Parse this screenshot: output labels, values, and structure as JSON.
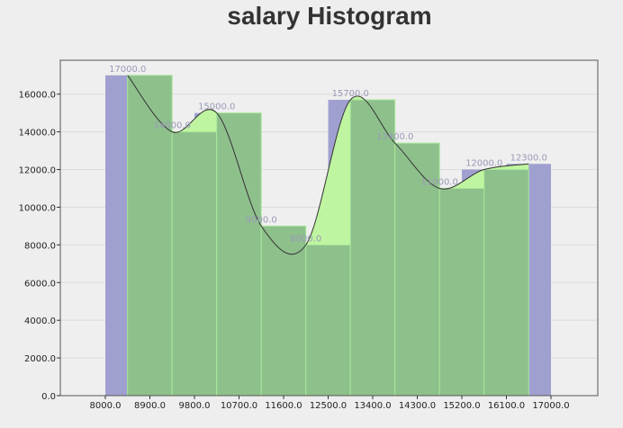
{
  "chart_data": {
    "type": "bar",
    "title": "salary Histogram",
    "xlabel": "",
    "ylabel": "",
    "x_ticks": [
      "8000.0",
      "8900.0",
      "9800.0",
      "10700.0",
      "11600.0",
      "12500.0",
      "13400.0",
      "14300.0",
      "15200.0",
      "16100.0",
      "17000.0"
    ],
    "y_ticks": [
      "0.0",
      "2000.0",
      "4000.0",
      "6000.0",
      "8000.0",
      "10000.0",
      "12000.0",
      "14000.0",
      "16000.0"
    ],
    "ylim": [
      0,
      17800
    ],
    "grid": true,
    "series": [
      {
        "values": [
          17000,
          14000,
          15000,
          9000,
          8000,
          15700,
          13400,
          11000,
          12000,
          12300
        ],
        "labels": [
          "17000.0",
          "14000.0",
          "15000.0",
          "9000.0",
          "8000.0",
          "15700.0",
          "13400.0",
          "11000.0",
          "12000.0",
          "12300.0"
        ],
        "color": "#a0a0d0"
      }
    ],
    "overlay_color": "#8ec08c",
    "overlay_fill_between": "#bff5a0",
    "curve_color": "#333333"
  }
}
